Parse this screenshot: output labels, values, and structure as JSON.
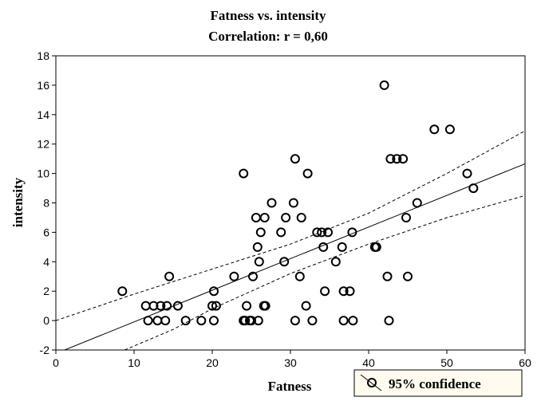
{
  "chart_data": {
    "type": "scatter",
    "title": "Fatness vs. intensity",
    "subtitle": "Correlation: r = 0,60",
    "xlabel": "Fatness",
    "ylabel": "intensity",
    "xlim": [
      0,
      60
    ],
    "ylim": [
      -2,
      18
    ],
    "x_ticks": [
      "0",
      "10",
      "20",
      "30",
      "40",
      "50",
      "60"
    ],
    "y_ticks": [
      "-2",
      "0",
      "2",
      "4",
      "6",
      "8",
      "10",
      "12",
      "14",
      "16",
      "18"
    ],
    "grid": false,
    "legend": {
      "label": "95% confidence",
      "placement": "bottom-right"
    },
    "regression": {
      "slope": 0.215,
      "intercept": -2.24
    },
    "confidence_upper": [
      [
        0,
        0.0
      ],
      [
        10,
        1.8
      ],
      [
        20,
        3.5
      ],
      [
        30,
        5.2
      ],
      [
        40,
        7.3
      ],
      [
        50,
        10.0
      ],
      [
        60,
        12.9
      ]
    ],
    "confidence_lower": [
      [
        8.8,
        -2.0
      ],
      [
        15,
        -0.6
      ],
      [
        20,
        0.8
      ],
      [
        30,
        3.2
      ],
      [
        40,
        5.2
      ],
      [
        50,
        7.0
      ],
      [
        60,
        8.5
      ]
    ],
    "points": [
      [
        8.5,
        2
      ],
      [
        11.5,
        1
      ],
      [
        11.8,
        0
      ],
      [
        12.5,
        1
      ],
      [
        13.0,
        0
      ],
      [
        13.4,
        1
      ],
      [
        14.0,
        0
      ],
      [
        14.2,
        1
      ],
      [
        14.5,
        3
      ],
      [
        15.6,
        1
      ],
      [
        16.6,
        0
      ],
      [
        18.6,
        0
      ],
      [
        20.0,
        1
      ],
      [
        20.2,
        2
      ],
      [
        20.2,
        0
      ],
      [
        20.5,
        1
      ],
      [
        22.8,
        3
      ],
      [
        24.0,
        10
      ],
      [
        24.0,
        0
      ],
      [
        24.2,
        0
      ],
      [
        24.4,
        1
      ],
      [
        24.8,
        0
      ],
      [
        25.0,
        0
      ],
      [
        25.2,
        3
      ],
      [
        25.6,
        7
      ],
      [
        25.8,
        5
      ],
      [
        25.9,
        0
      ],
      [
        26.0,
        4
      ],
      [
        26.2,
        6
      ],
      [
        26.6,
        1
      ],
      [
        26.7,
        7
      ],
      [
        26.8,
        1
      ],
      [
        27.6,
        8
      ],
      [
        28.8,
        6
      ],
      [
        29.2,
        4
      ],
      [
        29.4,
        7
      ],
      [
        30.4,
        8
      ],
      [
        30.6,
        11
      ],
      [
        30.6,
        0
      ],
      [
        31.2,
        3
      ],
      [
        31.4,
        7
      ],
      [
        32.0,
        1
      ],
      [
        32.2,
        10
      ],
      [
        32.8,
        0
      ],
      [
        33.4,
        6
      ],
      [
        34.0,
        6
      ],
      [
        34.2,
        5
      ],
      [
        34.4,
        2
      ],
      [
        34.8,
        6
      ],
      [
        35.8,
        4
      ],
      [
        36.6,
        5
      ],
      [
        36.8,
        2
      ],
      [
        36.8,
        0
      ],
      [
        37.6,
        2
      ],
      [
        37.9,
        6
      ],
      [
        38.0,
        0
      ],
      [
        40.8,
        5
      ],
      [
        41.0,
        5
      ],
      [
        42.0,
        16
      ],
      [
        42.4,
        3
      ],
      [
        42.6,
        0
      ],
      [
        42.8,
        11
      ],
      [
        43.6,
        11
      ],
      [
        44.4,
        11
      ],
      [
        44.8,
        7
      ],
      [
        45.0,
        3
      ],
      [
        46.2,
        8
      ],
      [
        48.4,
        13
      ],
      [
        50.4,
        13
      ],
      [
        52.6,
        10
      ],
      [
        53.4,
        9
      ]
    ]
  }
}
